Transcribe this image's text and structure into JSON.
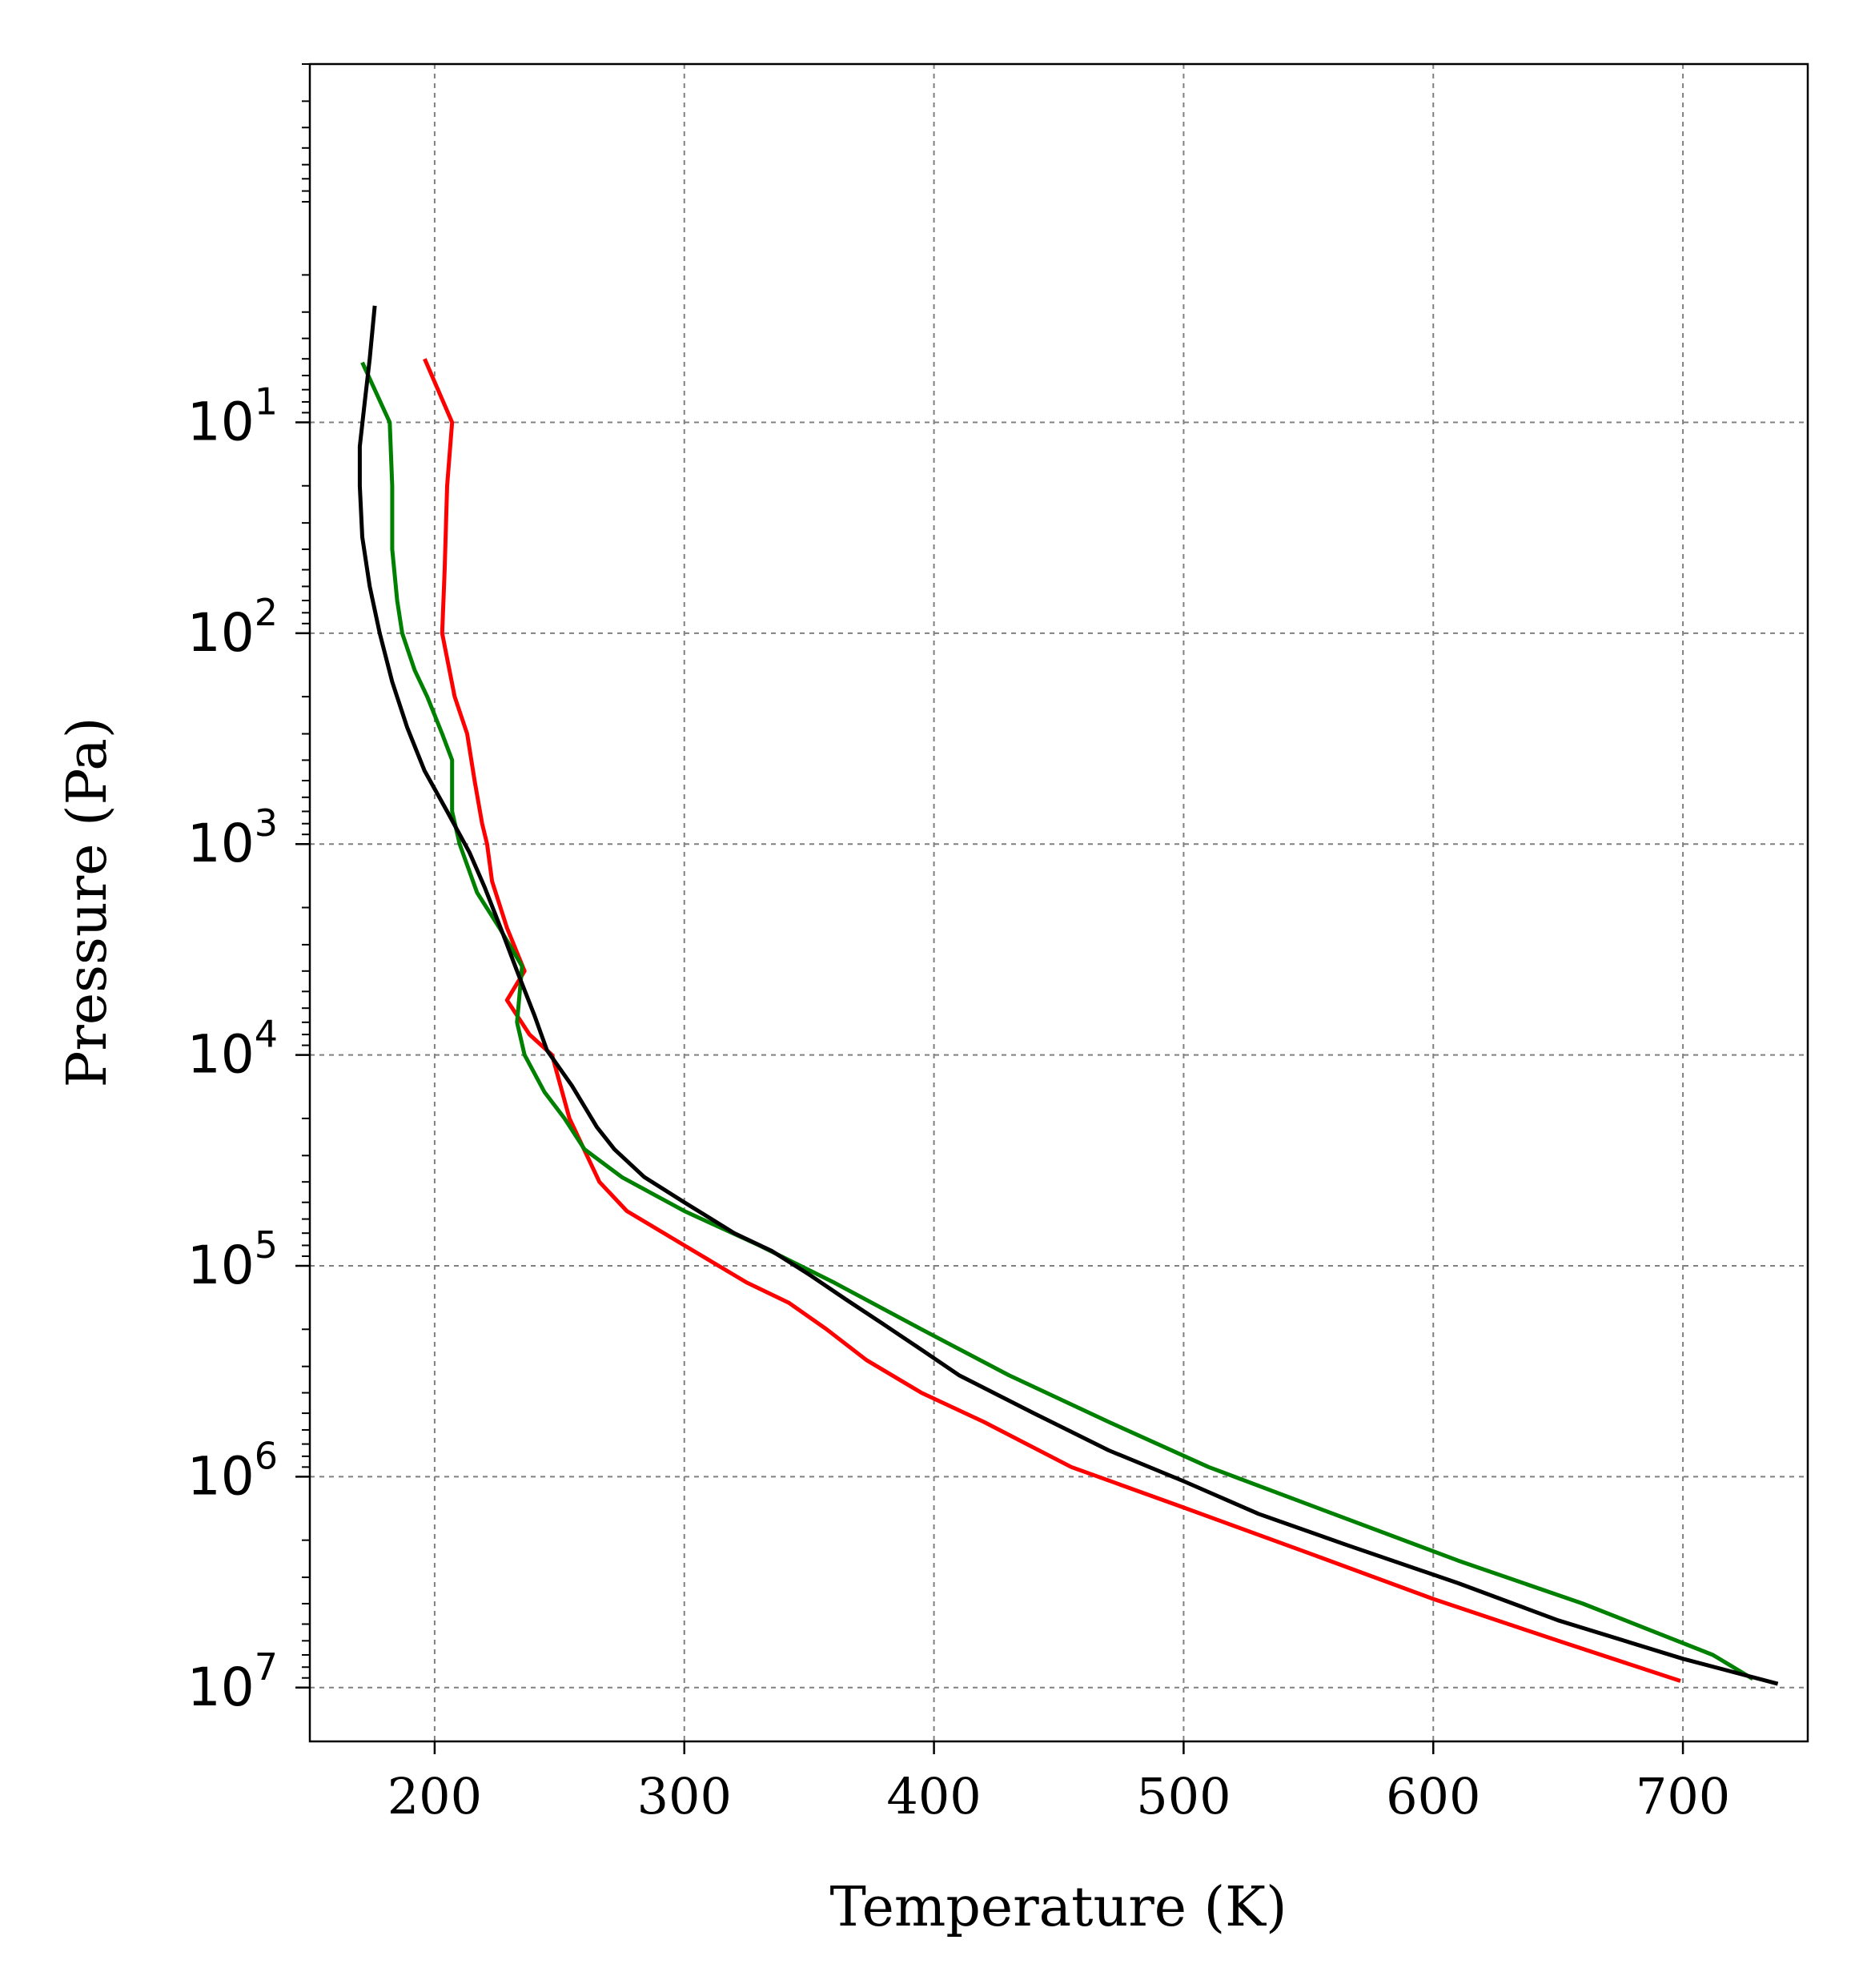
{
  "chart_data": {
    "type": "line",
    "title": "",
    "xlabel": "Temperature (K)",
    "ylabel": "Pressure (Pa)",
    "xlim": [
      150,
      750
    ],
    "ylim": [
      0.2,
      18000000
    ],
    "yscale": "log",
    "y_inverted": true,
    "grid": true,
    "grid_style": "dashed",
    "legend": "none",
    "xticks": [
      200,
      300,
      400,
      500,
      600,
      700
    ],
    "xtick_labels": [
      "200",
      "300",
      "400",
      "500",
      "600",
      "700"
    ],
    "yticks": [
      10,
      100,
      1000,
      10000,
      100000,
      1000000,
      10000000
    ],
    "ytick_labels": [
      {
        "base": "10",
        "exp": "1"
      },
      {
        "base": "10",
        "exp": "2"
      },
      {
        "base": "10",
        "exp": "3"
      },
      {
        "base": "10",
        "exp": "4"
      },
      {
        "base": "10",
        "exp": "5"
      },
      {
        "base": "10",
        "exp": "6"
      },
      {
        "base": "10",
        "exp": "7"
      }
    ],
    "series": [
      {
        "color": "#ff0000",
        "x": [
          196,
          207,
          205,
          204,
          203,
          208,
          213,
          216,
          219,
          221,
          223,
          229,
          236,
          229,
          238,
          247,
          254,
          266,
          277,
          300,
          325,
          342,
          357,
          373,
          395,
          420,
          455,
          500,
          550,
          600,
          650,
          699
        ],
        "y": [
          5,
          10,
          20,
          50,
          100,
          200,
          300,
          500,
          800,
          1000,
          1500,
          2500,
          4000,
          5500,
          8000,
          10000,
          20000,
          40000,
          55000,
          80000,
          120000,
          150000,
          200000,
          280000,
          400000,
          550000,
          900000,
          1400000,
          2300000,
          3800000,
          6000000,
          9300000
        ]
      },
      {
        "color": "#008000",
        "x": [
          171,
          182,
          183,
          183,
          185,
          187,
          192,
          197,
          203,
          207,
          207,
          210,
          217,
          226,
          235,
          233,
          236,
          244,
          252,
          260,
          275,
          300,
          330,
          360,
          395,
          430,
          470,
          510,
          560,
          610,
          660,
          712,
          728
        ],
        "y": [
          5.2,
          10,
          20,
          40,
          70,
          100,
          150,
          200,
          300,
          400,
          700,
          1000,
          1700,
          2500,
          3800,
          7000,
          10000,
          15000,
          20000,
          28000,
          38000,
          55000,
          80000,
          120000,
          200000,
          330000,
          550000,
          900000,
          1500000,
          2500000,
          4000000,
          7000000,
          9100000
        ]
      },
      {
        "color": "#000000",
        "x": [
          176,
          174,
          172,
          170,
          170,
          171,
          174,
          178,
          183,
          189,
          196,
          205,
          214,
          220,
          227,
          233,
          240,
          245,
          255,
          265,
          272,
          284,
          300,
          320,
          335,
          350,
          365,
          380,
          395,
          410,
          440,
          470,
          500,
          530,
          565,
          610,
          650,
          700,
          738
        ],
        "y": [
          2.8,
          5,
          8,
          13,
          20,
          35,
          60,
          100,
          170,
          280,
          450,
          700,
          1100,
          1600,
          2600,
          4000,
          6500,
          9500,
          14000,
          22000,
          28000,
          38000,
          50000,
          70000,
          85000,
          110000,
          145000,
          190000,
          250000,
          330000,
          500000,
          750000,
          1050000,
          1500000,
          2100000,
          3200000,
          4800000,
          7300000,
          9600000
        ]
      }
    ]
  }
}
